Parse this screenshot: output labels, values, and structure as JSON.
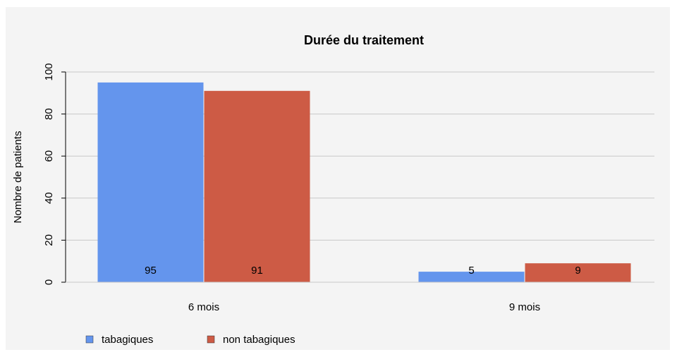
{
  "chart_data": {
    "type": "bar",
    "title": "Durée du traitement",
    "y_label": "Nombre de patients",
    "categories": [
      "6 mois",
      "9 mois"
    ],
    "series": [
      {
        "name": "tabagiques",
        "color": "#6495ed",
        "values": [
          95,
          5
        ]
      },
      {
        "name": "non tabagiques",
        "color": "#cd5b45",
        "values": [
          91,
          9
        ]
      }
    ],
    "ylim": [
      0,
      100
    ],
    "yticks": [
      0,
      20,
      40,
      60,
      80,
      100
    ],
    "grid": true,
    "legend": "bottom-left"
  }
}
